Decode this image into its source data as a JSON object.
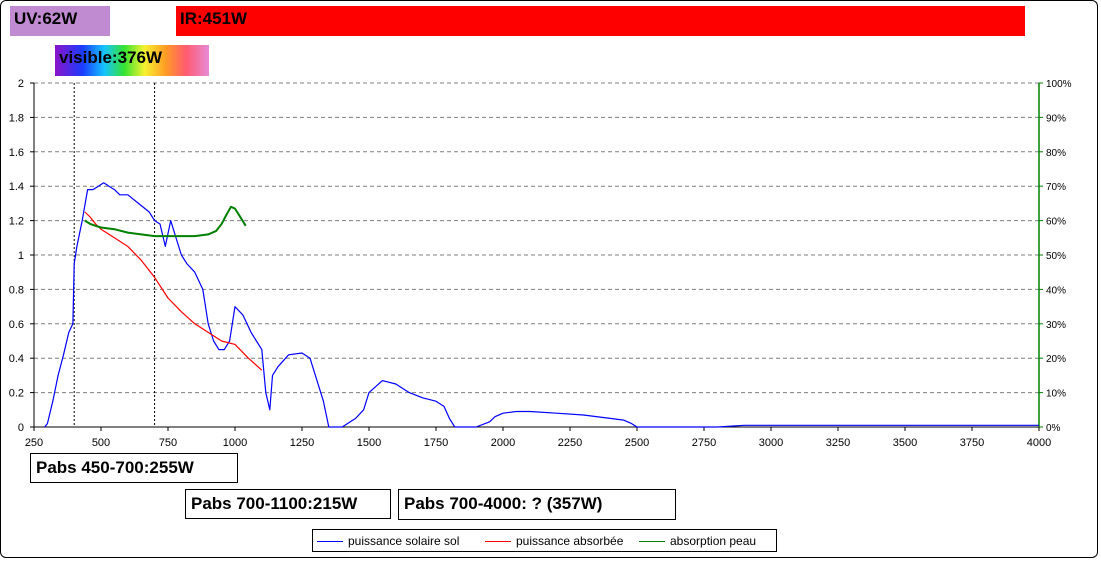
{
  "bands": {
    "uv": "UV:62W",
    "ir": "IR:451W",
    "visible": "visible:376W"
  },
  "notes": {
    "pabs_450_700": "Pabs 450-700:255W",
    "pabs_700_1100": "Pabs 700-1100:215W",
    "pabs_700_4000": "Pabs 700-4000: ? (357W)"
  },
  "chart_data": {
    "type": "line",
    "title": "",
    "xlabel": "",
    "ylabel": "",
    "xlim": [
      250,
      4000
    ],
    "x_ticks": [
      250,
      500,
      750,
      1000,
      1250,
      1500,
      1750,
      2000,
      2250,
      2500,
      2750,
      3000,
      3250,
      3500,
      3750,
      4000
    ],
    "ylim": [
      0,
      2
    ],
    "y_ticks": [
      "0",
      "0.2",
      "0.4",
      "0.6",
      "0.8",
      "1",
      "1.2",
      "1.4",
      "1.6",
      "1.8",
      "2"
    ],
    "y2lim": [
      0,
      1
    ],
    "y2_ticks": [
      "0%",
      "10%",
      "20%",
      "30%",
      "40%",
      "50%",
      "60%",
      "70%",
      "80%",
      "90%",
      "100%"
    ],
    "grid": "horizontal dashed",
    "vertical_markers": [
      400,
      700
    ],
    "legend_position": "bottom",
    "colors": {
      "solar": "#0000ff",
      "absorbed": "#ff0000",
      "absorption": "#008000",
      "right_axis": "#008000"
    },
    "series": [
      {
        "name": "puissance solaire sol",
        "axis": "left",
        "x": [
          290,
          300,
          320,
          340,
          360,
          380,
          395,
          400,
          410,
          430,
          450,
          470,
          490,
          510,
          530,
          550,
          570,
          600,
          640,
          680,
          700,
          720,
          740,
          760,
          780,
          800,
          820,
          850,
          880,
          900,
          920,
          940,
          960,
          980,
          1000,
          1030,
          1060,
          1080,
          1100,
          1115,
          1130,
          1140,
          1160,
          1200,
          1250,
          1280,
          1300,
          1330,
          1350,
          1400,
          1450,
          1480,
          1500,
          1550,
          1600,
          1650,
          1700,
          1750,
          1780,
          1800,
          1820,
          1900,
          1950,
          1970,
          2000,
          2050,
          2100,
          2200,
          2300,
          2400,
          2450,
          2480,
          2500,
          2600,
          2800,
          2900,
          3000,
          3500,
          4000
        ],
        "values": [
          0.0,
          0.02,
          0.15,
          0.3,
          0.42,
          0.55,
          0.6,
          0.95,
          1.05,
          1.2,
          1.38,
          1.38,
          1.4,
          1.42,
          1.4,
          1.38,
          1.35,
          1.35,
          1.3,
          1.25,
          1.2,
          1.18,
          1.05,
          1.2,
          1.1,
          1.0,
          0.95,
          0.9,
          0.8,
          0.6,
          0.5,
          0.45,
          0.45,
          0.5,
          0.7,
          0.65,
          0.55,
          0.5,
          0.45,
          0.2,
          0.1,
          0.3,
          0.35,
          0.42,
          0.43,
          0.4,
          0.3,
          0.15,
          0.0,
          0.0,
          0.05,
          0.1,
          0.2,
          0.27,
          0.25,
          0.2,
          0.17,
          0.15,
          0.12,
          0.05,
          0.0,
          0.0,
          0.03,
          0.06,
          0.08,
          0.09,
          0.09,
          0.08,
          0.07,
          0.05,
          0.04,
          0.02,
          0.0,
          0.0,
          0.0,
          0.01,
          0.01,
          0.01,
          0.01
        ]
      },
      {
        "name": "puissance absorbée",
        "axis": "left",
        "x": [
          440,
          460,
          480,
          500,
          550,
          600,
          650,
          700,
          750,
          800,
          850,
          900,
          950,
          1000,
          1050,
          1100
        ],
        "values": [
          1.25,
          1.22,
          1.18,
          1.15,
          1.1,
          1.05,
          0.97,
          0.87,
          0.75,
          0.67,
          0.6,
          0.55,
          0.5,
          0.48,
          0.4,
          0.33
        ]
      },
      {
        "name": "absorption peau",
        "axis": "right",
        "x": [
          440,
          460,
          480,
          500,
          550,
          600,
          650,
          700,
          750,
          800,
          850,
          900,
          930,
          950,
          970,
          985,
          1000,
          1020,
          1040
        ],
        "values": [
          0.6,
          0.59,
          0.585,
          0.58,
          0.575,
          0.565,
          0.56,
          0.555,
          0.555,
          0.555,
          0.555,
          0.56,
          0.57,
          0.59,
          0.62,
          0.64,
          0.635,
          0.61,
          0.585
        ]
      }
    ]
  }
}
